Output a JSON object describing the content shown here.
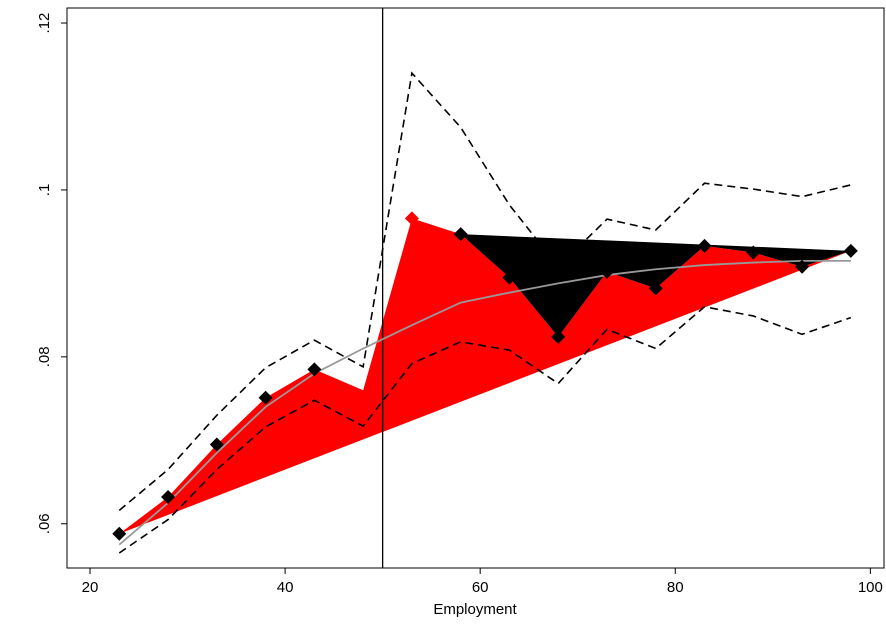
{
  "chart_data": {
    "type": "line",
    "x_label": "Employment",
    "x": [
      23,
      28,
      33,
      38,
      43,
      48,
      53,
      58,
      63,
      68,
      73,
      78,
      83,
      88,
      93,
      98
    ],
    "series": [
      {
        "values": [
          0.0588,
          0.0632,
          0.0695,
          0.0751,
          0.0785,
          0.076,
          0.0966,
          0.0947,
          0.0895,
          0.0824,
          0.0902,
          0.0882,
          0.0933,
          0.0925,
          0.0908,
          0.0927
        ],
        "color": "#000000",
        "fill": "#ff0000",
        "highlight_fill": "#000000",
        "highlight_from": 58,
        "marker": "diamond",
        "marker_colors": [
          "#000000",
          "#000000",
          "#000000",
          "#000000",
          "#000000",
          null,
          "#ff0000",
          "#000000",
          "#000000",
          "#000000",
          "#000000",
          "#000000",
          "#000000",
          "#000000",
          "#000000",
          "#000000"
        ]
      },
      {
        "values": [
          0.0616,
          0.0665,
          0.073,
          0.0787,
          0.082,
          0.0788,
          0.114,
          0.1075,
          0.0982,
          0.0908,
          0.0965,
          0.0952,
          0.1008,
          0.1001,
          0.0992,
          0.1006
        ],
        "color": "#000000",
        "dash": true
      },
      {
        "values": [
          0.0565,
          0.0605,
          0.0665,
          0.0716,
          0.0748,
          0.0717,
          0.0792,
          0.0818,
          0.0808,
          0.0768,
          0.0833,
          0.081,
          0.086,
          0.0849,
          0.0827,
          0.0847
        ],
        "color": "#000000",
        "dash": true
      },
      {
        "values": [
          0.0575,
          0.0625,
          0.0685,
          0.074,
          0.078,
          0.081,
          0.0838,
          0.0865,
          0.0877,
          0.0888,
          0.0898,
          0.0905,
          0.091,
          0.0913,
          0.0915,
          0.0915
        ],
        "color": "#999999"
      }
    ],
    "vline": 50,
    "xlim": [
      17.64,
      101.4
    ],
    "ylim": [
      0.0547,
      0.1218
    ],
    "xticks": [
      20,
      40,
      60,
      80,
      100
    ],
    "yticks": [
      {
        "value": 0.06,
        "label": ".06"
      },
      {
        "value": 0.08,
        "label": ".08"
      },
      {
        "value": 0.1,
        "label": ".1"
      },
      {
        "value": 0.12,
        "label": ".12"
      }
    ]
  }
}
